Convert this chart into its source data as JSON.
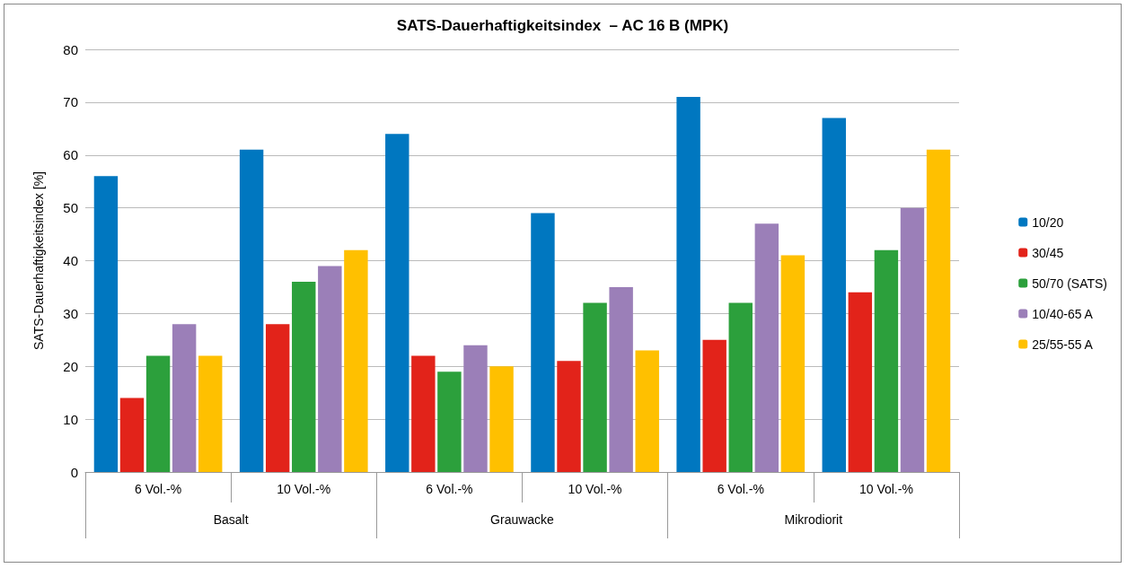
{
  "chart_data": {
    "type": "bar",
    "title": "SATS-Dauerhaftigkeitsindex  – AC 16 B (MPK)",
    "ylabel": "SATS-Dauerhaftigkeitsindex [%]",
    "categories": [
      "6 Vol.-%",
      "10 Vol.-%",
      "6 Vol.-%",
      "10 Vol.-%",
      "6 Vol.-%",
      "10 Vol.-%"
    ],
    "annotations": [
      "Basalt",
      "Grauwacke",
      "Mikrodiorit"
    ],
    "series": [
      {
        "name": "10/20",
        "color": "#0077c0",
        "values": [
          56,
          61,
          64,
          49,
          71,
          67
        ]
      },
      {
        "name": "30/45",
        "color": "#e2231a",
        "values": [
          14,
          28,
          22,
          21,
          25,
          34
        ]
      },
      {
        "name": "50/70 (SATS)",
        "color": "#2ca03c",
        "values": [
          22,
          36,
          19,
          32,
          32,
          42
        ]
      },
      {
        "name": "10/40-65 A",
        "color": "#9b7fb8",
        "values": [
          28,
          39,
          24,
          35,
          47,
          50
        ]
      },
      {
        "name": "25/55-55 A",
        "color": "#ffc000",
        "values": [
          22,
          42,
          20,
          23,
          41,
          61
        ]
      }
    ],
    "ylim": [
      0,
      80
    ],
    "yticks": [
      0,
      10,
      20,
      30,
      40,
      50,
      60,
      70,
      80
    ],
    "grid": "y",
    "legend": "right"
  }
}
